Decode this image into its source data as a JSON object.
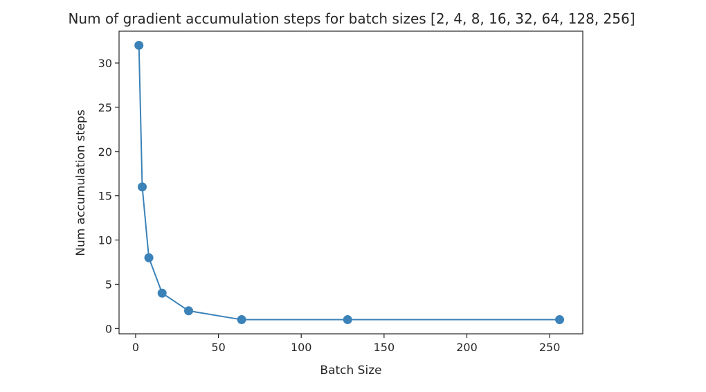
{
  "chart_data": {
    "type": "line",
    "title": "Num of gradient accumulation steps for batch sizes [2, 4, 8, 16, 32, 64, 128, 256]",
    "xlabel": "Batch Size",
    "ylabel": "Num accumulation steps",
    "xlim": [
      -10,
      270
    ],
    "ylim": [
      -0.6,
      33.6
    ],
    "xticks": [
      0,
      50,
      100,
      150,
      200,
      250
    ],
    "yticks": [
      0,
      5,
      10,
      15,
      20,
      25,
      30
    ],
    "grid": false,
    "marker": "circle",
    "series": [
      {
        "color": "#3b82b8",
        "x": [
          2,
          4,
          8,
          16,
          32,
          64,
          128,
          256
        ],
        "y": [
          32,
          16,
          8,
          4,
          2,
          1,
          1,
          1
        ]
      }
    ]
  }
}
